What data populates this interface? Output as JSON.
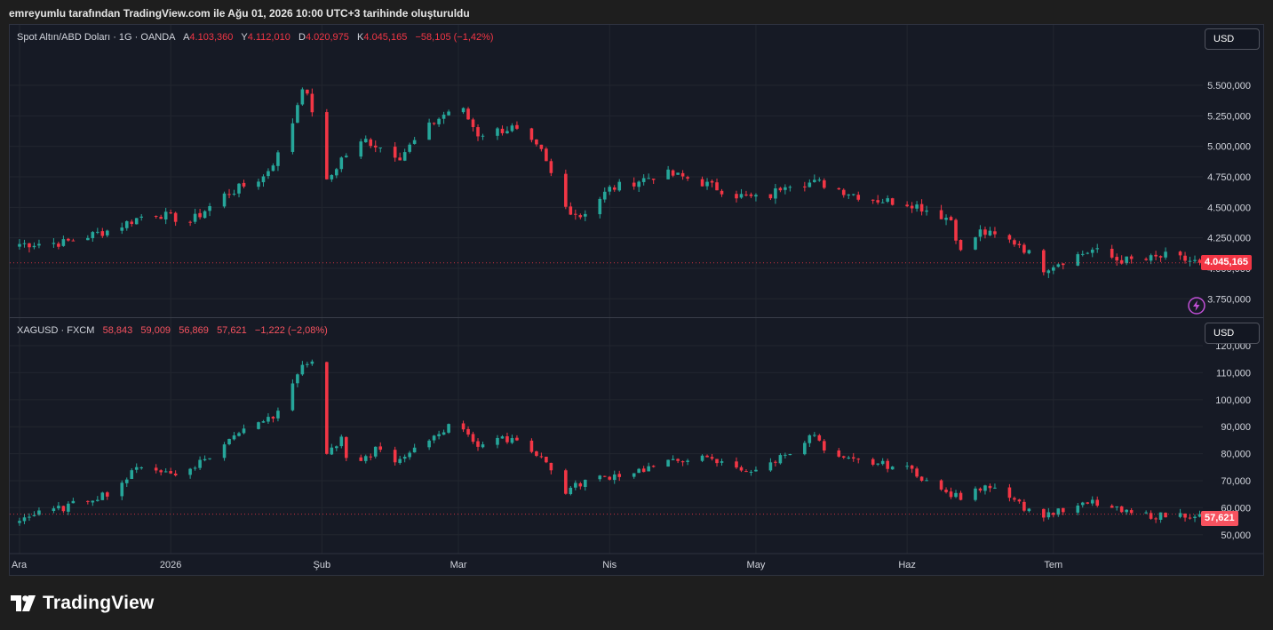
{
  "caption": "emreyumlu tarafından TradingView.com ile Ağu 01, 2026 10:00 UTC+3 tarihinde oluşturuldu",
  "brand": "TradingView",
  "colors": {
    "up": "#26a69a",
    "down": "#f23645",
    "background": "#161a25",
    "grid": "#22262f"
  },
  "currency_label": "USD",
  "chart_data": [
    {
      "type": "candlestick",
      "symbol": "Spot Altın/ABD Doları · 1G · OANDA",
      "legend": {
        "open_label": "A",
        "open": "4.103,360",
        "high_label": "Y",
        "high": "4.112,010",
        "low_label": "D",
        "low": "4.020,975",
        "close_label": "K",
        "close": "4.045,165",
        "change": "−58,105 (−1,42%)"
      },
      "last_price_label": "4.045,165",
      "last_price": 4045.165,
      "ylim": [
        3650,
        5850
      ],
      "yticks": [
        3750,
        4000,
        4250,
        4500,
        4750,
        5000,
        5250,
        5500
      ],
      "ytick_labels": [
        "3.750,000",
        "4.000,000",
        "4.250,000",
        "4.500,000",
        "4.750,000",
        "5.000,000",
        "5.250,000",
        "5.500,000"
      ],
      "anchors": [
        [
          "2025-12-01",
          4200
        ],
        [
          "2025-12-10",
          4210
        ],
        [
          "2025-12-20",
          4320
        ],
        [
          "2025-12-28",
          4460
        ],
        [
          "2026-01-05",
          4380
        ],
        [
          "2026-01-12",
          4600
        ],
        [
          "2026-01-20",
          4750
        ],
        [
          "2026-01-25",
          5050
        ],
        [
          "2026-01-28",
          5500
        ],
        [
          "2026-01-31",
          5200
        ],
        [
          "2026-02-02",
          4700
        ],
        [
          "2026-02-05",
          4900
        ],
        [
          "2026-02-10",
          5050
        ],
        [
          "2026-02-17",
          4920
        ],
        [
          "2026-02-24",
          5200
        ],
        [
          "2026-03-01",
          5350
        ],
        [
          "2026-03-05",
          5100
        ],
        [
          "2026-03-12",
          5150
        ],
        [
          "2026-03-18",
          4950
        ],
        [
          "2026-03-23",
          4500
        ],
        [
          "2026-03-26",
          4430
        ],
        [
          "2026-04-01",
          4650
        ],
        [
          "2026-04-12",
          4780
        ],
        [
          "2026-04-18",
          4730
        ],
        [
          "2026-04-27",
          4600
        ],
        [
          "2026-05-03",
          4560
        ],
        [
          "2026-05-07",
          4700
        ],
        [
          "2026-05-14",
          4700
        ],
        [
          "2026-05-24",
          4570
        ],
        [
          "2026-06-02",
          4530
        ],
        [
          "2026-06-10",
          4400
        ],
        [
          "2026-06-12",
          4130
        ],
        [
          "2026-06-16",
          4300
        ],
        [
          "2026-06-24",
          4200
        ],
        [
          "2026-06-29",
          4000
        ],
        [
          "2026-07-04",
          4080
        ],
        [
          "2026-07-09",
          4150
        ],
        [
          "2026-07-14",
          4070
        ],
        [
          "2026-07-19",
          4060
        ],
        [
          "2026-07-24",
          4100
        ],
        [
          "2026-07-31",
          4045
        ]
      ]
    },
    {
      "type": "candlestick",
      "symbol": "XAGUSD · FXCM",
      "legend": {
        "open": "58,843",
        "high": "59,009",
        "low": "56,869",
        "close": "57,621",
        "change": "−1,222 (−2,08%)"
      },
      "last_price_label": "57,621",
      "last_price": 57.621,
      "ylim": [
        44,
        121
      ],
      "yticks": [
        50,
        60,
        70,
        80,
        90,
        100,
        110,
        120
      ],
      "ytick_labels": [
        "50,000",
        "60,000",
        "70,000",
        "80,000",
        "90,000",
        "100,000",
        "110,000",
        "120,000"
      ],
      "anchors": [
        [
          "2025-12-01",
          56
        ],
        [
          "2025-12-10",
          60
        ],
        [
          "2025-12-20",
          66
        ],
        [
          "2025-12-26",
          76
        ],
        [
          "2026-01-02",
          72
        ],
        [
          "2026-01-10",
          80
        ],
        [
          "2026-01-16",
          90
        ],
        [
          "2026-01-22",
          94
        ],
        [
          "2026-01-27",
          110
        ],
        [
          "2026-01-30",
          115
        ],
        [
          "2026-02-02",
          80
        ],
        [
          "2026-02-05",
          85
        ],
        [
          "2026-02-07",
          72
        ],
        [
          "2026-02-12",
          82
        ],
        [
          "2026-02-17",
          77
        ],
        [
          "2026-02-25",
          88
        ],
        [
          "2026-03-01",
          92
        ],
        [
          "2026-03-05",
          83
        ],
        [
          "2026-03-12",
          86
        ],
        [
          "2026-03-18",
          79
        ],
        [
          "2026-03-23",
          66
        ],
        [
          "2026-03-27",
          70
        ],
        [
          "2026-04-05",
          73
        ],
        [
          "2026-04-12",
          76
        ],
        [
          "2026-04-18",
          79
        ],
        [
          "2026-04-25",
          76
        ],
        [
          "2026-05-01",
          73
        ],
        [
          "2026-05-07",
          80
        ],
        [
          "2026-05-13",
          87
        ],
        [
          "2026-05-16",
          78
        ],
        [
          "2026-05-24",
          77
        ],
        [
          "2026-06-02",
          74
        ],
        [
          "2026-06-08",
          66
        ],
        [
          "2026-06-13",
          63
        ],
        [
          "2026-06-17",
          69
        ],
        [
          "2026-06-22",
          65
        ],
        [
          "2026-06-27",
          57
        ],
        [
          "2026-07-04",
          59
        ],
        [
          "2026-07-09",
          62
        ],
        [
          "2026-07-16",
          58
        ],
        [
          "2026-07-22",
          57
        ],
        [
          "2026-07-31",
          57.6
        ]
      ]
    }
  ],
  "time_axis": {
    "range": [
      "2025-11-29",
      "2026-08-01"
    ],
    "ticks": [
      {
        "label": "Ara",
        "date": "2025-12-01"
      },
      {
        "label": "2026",
        "date": "2026-01-01"
      },
      {
        "label": "Şub",
        "date": "2026-02-01"
      },
      {
        "label": "Mar",
        "date": "2026-03-01"
      },
      {
        "label": "Nis",
        "date": "2026-04-01"
      },
      {
        "label": "May",
        "date": "2026-05-01"
      },
      {
        "label": "Haz",
        "date": "2026-06-01"
      },
      {
        "label": "Tem",
        "date": "2026-07-01"
      }
    ]
  }
}
